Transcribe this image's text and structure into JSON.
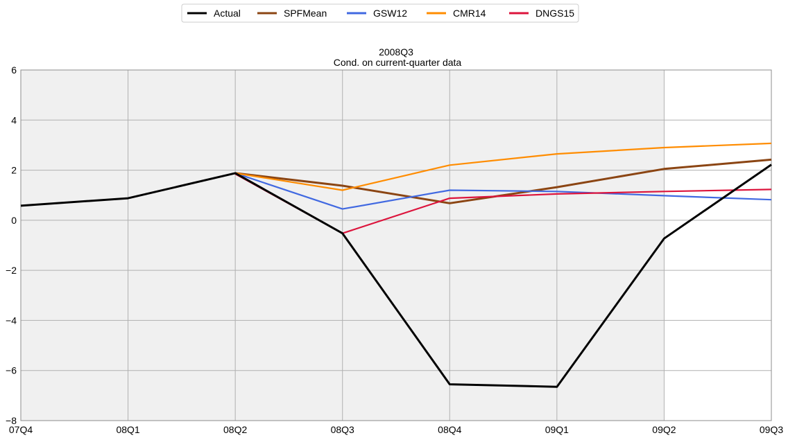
{
  "chart_data": {
    "type": "line",
    "title": "2008Q3",
    "subtitle": "Cond. on current-quarter data",
    "xlabel": "",
    "ylabel": "",
    "categories": [
      "07Q4",
      "08Q1",
      "08Q2",
      "08Q3",
      "08Q4",
      "09Q1",
      "09Q2",
      "09Q3"
    ],
    "ylim": [
      -8,
      6
    ],
    "yticks": [
      -8,
      -6,
      -4,
      -2,
      0,
      2,
      4,
      6
    ],
    "ytick_labels": [
      "−8",
      "−6",
      "−4",
      "−2",
      "0",
      "2",
      "4",
      "6"
    ],
    "grid": true,
    "shaded_region": {
      "from": "07Q4",
      "to": "09Q2",
      "color": "#f0f0f0"
    },
    "legend_position": "top-center",
    "series": [
      {
        "name": "Actual",
        "color": "#000000",
        "values": [
          0.58,
          0.88,
          1.88,
          -0.52,
          -6.55,
          -6.65,
          -0.73,
          2.22
        ]
      },
      {
        "name": "SPFMean",
        "color": "#8b4513",
        "values": [
          null,
          null,
          1.88,
          1.38,
          0.68,
          1.32,
          2.05,
          2.42
        ]
      },
      {
        "name": "GSW12",
        "color": "#4169e1",
        "values": [
          null,
          null,
          1.88,
          0.45,
          1.2,
          1.15,
          0.98,
          0.82
        ]
      },
      {
        "name": "CMR14",
        "color": "#ff8c00",
        "values": [
          null,
          null,
          1.88,
          1.2,
          2.2,
          2.65,
          2.9,
          3.07
        ]
      },
      {
        "name": "DNGS15",
        "color": "#dc143c",
        "values": [
          null,
          null,
          1.85,
          -0.52,
          0.88,
          1.05,
          1.15,
          1.23
        ]
      }
    ]
  }
}
